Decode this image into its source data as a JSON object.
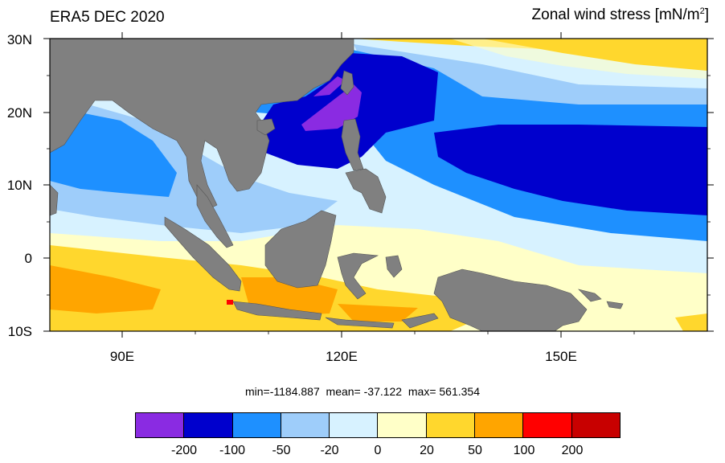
{
  "title_left": "ERA5 DEC 2020",
  "title_right_text": "Zonal wind stress [mN/m",
  "title_right_sup": "2",
  "title_right_end": "]",
  "lat_labels": [
    "30N",
    "20N",
    "10N",
    "0",
    "10S"
  ],
  "lon_labels": [
    "90E",
    "120E",
    "150E"
  ],
  "stats": "min=-1184.887  mean= -37.122  max= 561.354",
  "colorbar": {
    "colors": [
      "#8a2be2",
      "#0000cd",
      "#1e90ff",
      "#9ecdfa",
      "#d7f2ff",
      "#ffffc8",
      "#ffd72d",
      "#ffa500",
      "#ff0000",
      "#c80000"
    ],
    "labels": [
      "-200",
      "-100",
      "-50",
      "-20",
      "0",
      "20",
      "50",
      "100",
      "200"
    ]
  },
  "land_color": "#808080"
}
